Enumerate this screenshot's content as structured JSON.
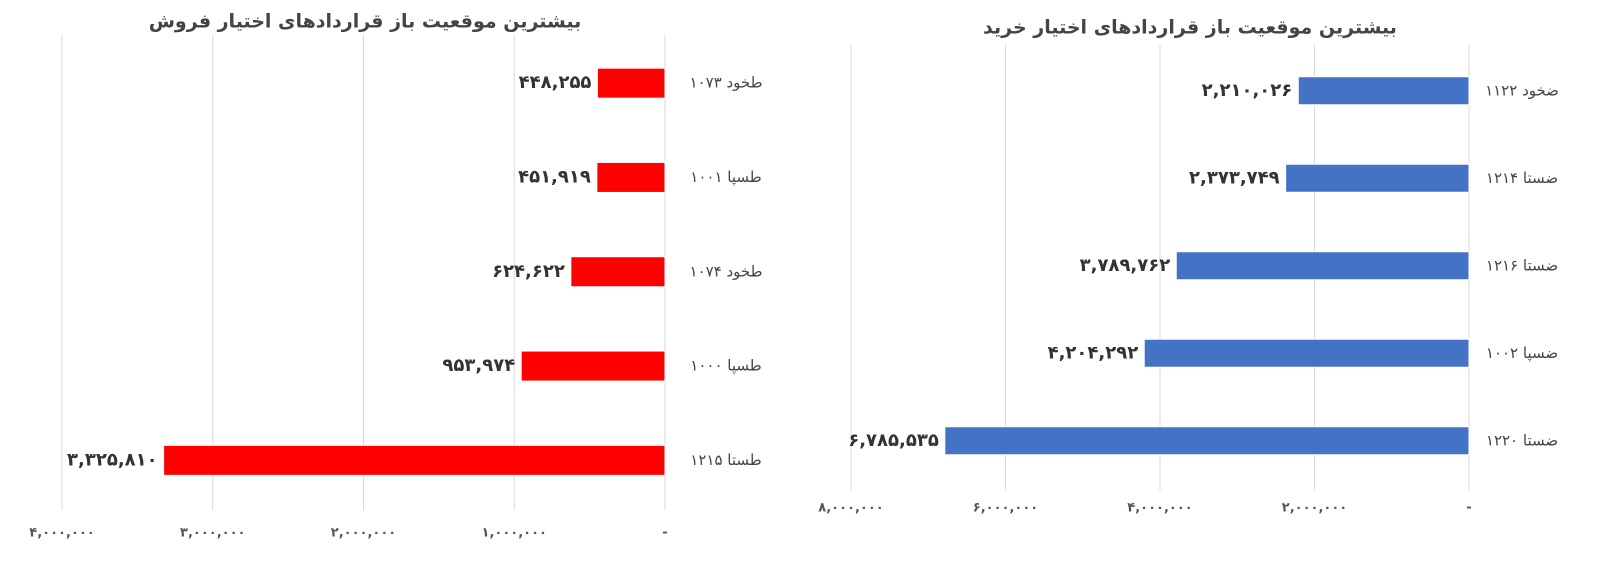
{
  "chart_data": [
    {
      "type": "bar",
      "orientation": "horizontal",
      "x_reversed": true,
      "title": "بیشترین موقعیت باز قراردادهای اختیار فروش",
      "categories": [
        "طخود ۱۰۷۳",
        "طسپا ۱۰۰۱",
        "طخود ۱۰۷۴",
        "طسپا ۱۰۰۰",
        "طستا ۱۲۱۵"
      ],
      "values": [
        448255,
        451919,
        624622,
        953974,
        3325810
      ],
      "value_labels": [
        "۴۴۸,۲۵۵",
        "۴۵۱,۹۱۹",
        "۶۲۴,۶۲۲",
        "۹۵۳,۹۷۴",
        "۳,۳۲۵,۸۱۰"
      ],
      "color": "#ff0000",
      "xlim": [
        0,
        4000000
      ],
      "xticks": [
        {
          "value": 0,
          "label": "-"
        },
        {
          "value": 1000000,
          "label": "۱,۰۰۰,۰۰۰"
        },
        {
          "value": 2000000,
          "label": "۲,۰۰۰,۰۰۰"
        },
        {
          "value": 3000000,
          "label": "۳,۰۰۰,۰۰۰"
        },
        {
          "value": 4000000,
          "label": "۴,۰۰۰,۰۰۰"
        }
      ],
      "grid": true
    },
    {
      "type": "bar",
      "orientation": "horizontal",
      "x_reversed": true,
      "title": "بیشترین موقعیت باز قراردادهای اختیار خرید",
      "categories": [
        "ضخود ۱۱۲۲",
        "ضستا ۱۲۱۴",
        "ضستا ۱۲۱۶",
        "ضسپا ۱۰۰۲",
        "ضستا ۱۲۲۰"
      ],
      "values": [
        2210026,
        2373749,
        3789762,
        4204292,
        6785535
      ],
      "value_labels": [
        "۲,۲۱۰,۰۲۶",
        "۲,۳۷۳,۷۴۹",
        "۳,۷۸۹,۷۶۲",
        "۴,۲۰۴,۲۹۲",
        "۶,۷۸۵,۵۳۵"
      ],
      "color": "#4472c4",
      "xlim": [
        0,
        8000000
      ],
      "xticks": [
        {
          "value": 0,
          "label": "-"
        },
        {
          "value": 2000000,
          "label": "۲,۰۰۰,۰۰۰"
        },
        {
          "value": 4000000,
          "label": "۴,۰۰۰,۰۰۰"
        },
        {
          "value": 6000000,
          "label": "۶,۰۰۰,۰۰۰"
        },
        {
          "value": 8000000,
          "label": "۸,۰۰۰,۰۰۰"
        }
      ],
      "grid": true
    }
  ]
}
